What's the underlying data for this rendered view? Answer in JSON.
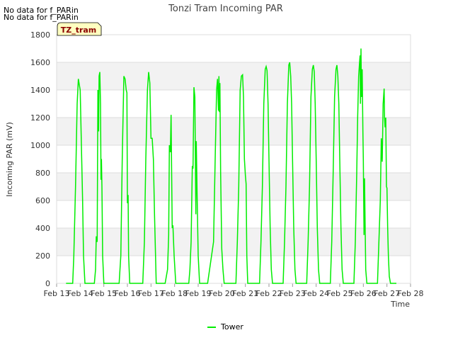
{
  "notes": [
    "No data for f_PARin",
    "No data for f_PARin"
  ],
  "badge": "TZ_tram",
  "colors": {
    "series": "#00ee00",
    "band": "#f2f2f2",
    "grid": "#dcdcdc",
    "badge_bg": "#ffffc0",
    "badge_text": "#8b0000"
  },
  "chart_data": {
    "type": "line",
    "title": "Tonzi Tram Incoming PAR",
    "xlabel": "Time",
    "ylabel": "Incoming PAR (mV)",
    "ylim": [
      0,
      1800
    ],
    "yticks": [
      0,
      200,
      400,
      600,
      800,
      1000,
      1200,
      1400,
      1600,
      1800
    ],
    "xlim": [
      13,
      28
    ],
    "xticks": [
      13,
      14,
      15,
      16,
      17,
      18,
      19,
      20,
      21,
      22,
      23,
      24,
      25,
      26,
      27,
      28
    ],
    "xtick_labels": [
      "Feb 13",
      "Feb 14",
      "Feb 15",
      "Feb 16",
      "Feb 17",
      "Feb 18",
      "Feb 19",
      "Feb 20",
      "Feb 21",
      "Feb 22",
      "Feb 23",
      "Feb 24",
      "Feb 25",
      "Feb 26",
      "Feb 27",
      "Feb 28"
    ],
    "grid": true,
    "legend_position": "bottom-center",
    "series": [
      {
        "name": "Tower",
        "x": [
          13.4,
          13.6,
          13.68,
          13.73,
          13.8,
          13.87,
          13.92,
          13.97,
          14.0,
          14.05,
          14.1,
          14.14,
          14.2,
          14.4,
          14.6,
          14.65,
          14.68,
          14.72,
          14.75,
          14.78,
          14.8,
          14.83,
          14.86,
          14.88,
          14.9,
          14.92,
          14.95,
          15.0,
          15.05,
          15.1,
          15.4,
          15.65,
          15.72,
          15.78,
          15.85,
          15.9,
          15.95,
          15.98,
          16.0,
          16.03,
          16.05,
          16.1,
          16.15,
          16.2,
          16.4,
          16.65,
          16.72,
          16.78,
          16.85,
          16.9,
          16.95,
          17.0,
          17.05,
          17.1,
          17.15,
          17.22,
          17.4,
          17.6,
          17.7,
          17.75,
          17.78,
          17.82,
          17.85,
          17.88,
          17.9,
          17.93,
          17.98,
          18.05,
          18.2,
          18.6,
          18.65,
          18.7,
          18.75,
          18.78,
          18.82,
          18.86,
          18.9,
          18.92,
          18.95,
          18.98,
          19.0,
          19.03,
          19.06,
          19.1,
          19.15,
          19.2,
          19.4,
          19.65,
          19.72,
          19.78,
          19.82,
          19.86,
          19.88,
          19.9,
          19.92,
          19.95,
          20.0,
          20.05,
          20.1,
          20.2,
          20.4,
          20.6,
          20.66,
          20.72,
          20.78,
          20.83,
          20.88,
          20.92,
          20.96,
          21.0,
          21.03,
          21.06,
          21.1,
          21.2,
          21.4,
          21.6,
          21.66,
          21.72,
          21.78,
          21.84,
          21.88,
          21.92,
          21.96,
          22.0,
          22.05,
          22.1,
          22.15,
          22.2,
          22.4,
          22.6,
          22.66,
          22.72,
          22.78,
          22.84,
          22.88,
          22.92,
          22.96,
          23.0,
          23.05,
          23.1,
          23.15,
          23.2,
          23.4,
          23.6,
          23.66,
          23.72,
          23.78,
          23.84,
          23.88,
          23.92,
          23.96,
          24.0,
          24.05,
          24.1,
          24.15,
          24.2,
          24.4,
          24.6,
          24.66,
          24.72,
          24.78,
          24.84,
          24.88,
          24.92,
          24.96,
          25.0,
          25.05,
          25.1,
          25.15,
          25.2,
          25.4,
          25.6,
          25.66,
          25.72,
          25.76,
          25.8,
          25.84,
          25.86,
          25.88,
          25.9,
          25.92,
          25.95,
          25.98,
          26.0,
          26.03,
          26.05,
          26.1,
          26.15,
          26.2,
          26.4,
          26.6,
          26.66,
          26.72,
          26.76,
          26.8,
          26.84,
          26.88,
          26.9,
          26.92,
          26.95,
          26.98,
          27.0,
          27.03,
          27.06,
          27.1,
          27.15,
          27.2,
          27.4
        ],
        "y": [
          0,
          0,
          0,
          200,
          700,
          1300,
          1480,
          1430,
          1400,
          1000,
          600,
          200,
          0,
          0,
          0,
          100,
          340,
          300,
          1400,
          1100,
          1500,
          1530,
          1300,
          750,
          900,
          700,
          200,
          0,
          0,
          0,
          0,
          0,
          200,
          900,
          1500,
          1480,
          1400,
          1380,
          580,
          640,
          200,
          0,
          0,
          0,
          0,
          0,
          300,
          900,
          1400,
          1530,
          1450,
          1050,
          1050,
          900,
          500,
          0,
          0,
          0,
          100,
          350,
          1000,
          950,
          1220,
          700,
          400,
          420,
          200,
          0,
          0,
          0,
          100,
          300,
          850,
          830,
          1420,
          1350,
          500,
          1030,
          700,
          400,
          200,
          100,
          0,
          0,
          0,
          0,
          0,
          300,
          900,
          1400,
          1480,
          1250,
          1500,
          1240,
          1450,
          800,
          250,
          100,
          0,
          0,
          0,
          0,
          300,
          700,
          1400,
          1500,
          1510,
          1350,
          900,
          780,
          720,
          200,
          0,
          0,
          0,
          0,
          300,
          700,
          1300,
          1550,
          1570,
          1540,
          1300,
          900,
          400,
          100,
          0,
          0,
          0,
          0,
          300,
          700,
          1300,
          1580,
          1600,
          1500,
          1300,
          900,
          400,
          100,
          0,
          0,
          0,
          0,
          300,
          700,
          1350,
          1550,
          1580,
          1530,
          1300,
          900,
          400,
          100,
          0,
          0,
          0,
          0,
          300,
          800,
          1350,
          1550,
          1580,
          1500,
          1300,
          900,
          400,
          100,
          0,
          0,
          0,
          0,
          300,
          800,
          1200,
          1500,
          1600,
          1650,
          1300,
          1700,
          1350,
          1550,
          1100,
          900,
          350,
          760,
          100,
          0,
          0,
          0,
          0,
          300,
          600,
          1050,
          880,
          1300,
          1410,
          1200,
          1130,
          1200,
          700,
          690,
          400,
          200,
          50,
          0,
          0,
          0
        ]
      }
    ]
  }
}
